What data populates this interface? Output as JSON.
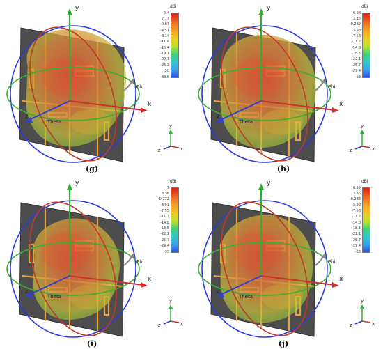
{
  "panels": [
    {
      "caption": "(g)",
      "colorbar": {
        "title": "dBi",
        "ticks": [
          "6.4",
          "2.77",
          "-0.87",
          "-4.51",
          "-8.14",
          "-11.8",
          "-15.4",
          "-19.1",
          "-22.7",
          "-26.3",
          "-30",
          "-33.6"
        ]
      },
      "axes": {
        "x": "x",
        "y": "y",
        "z": "z",
        "phi": "Phi",
        "theta": "Theta"
      }
    },
    {
      "caption": "(h)",
      "colorbar": {
        "title": "dBi",
        "ticks": [
          "6.98",
          "3.35",
          "-0.289",
          "-3.93",
          "-7.56",
          "-11.2",
          "-14.8",
          "-18.5",
          "-22.1",
          "-25.7",
          "-29.4",
          "-33"
        ]
      },
      "axes": {
        "x": "x",
        "y": "y",
        "z": "z",
        "phi": "Phi",
        "theta": "Theta"
      }
    },
    {
      "caption": "(i)",
      "colorbar": {
        "title": "dBi",
        "ticks": [
          "7",
          "3.36",
          "-0.272",
          "-3.91",
          "-7.55",
          "-11.2",
          "-14.8",
          "-18.5",
          "-22.1",
          "-25.7",
          "-29.4",
          "-33"
        ]
      },
      "axes": {
        "x": "x",
        "y": "y",
        "z": "z",
        "phi": "Phi",
        "theta": "Theta"
      }
    },
    {
      "caption": "(j)",
      "colorbar": {
        "title": "dBi",
        "ticks": [
          "6.99",
          "3.35",
          "-0.283",
          "-3.92",
          "-7.56",
          "-11.2",
          "-14.8",
          "-18.5",
          "-22.1",
          "-25.7",
          "-29.4",
          "-33"
        ]
      },
      "axes": {
        "x": "x",
        "y": "y",
        "z": "z",
        "phi": "Phi",
        "theta": "Theta"
      }
    }
  ]
}
